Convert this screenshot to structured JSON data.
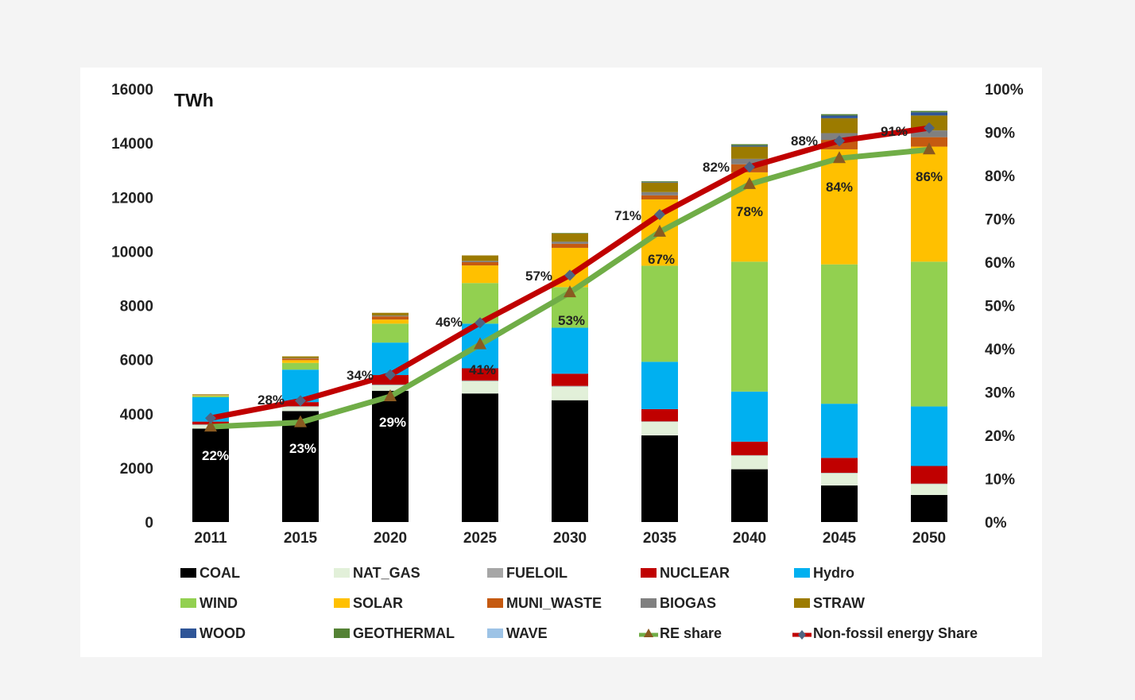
{
  "chart_data": {
    "type": "bar",
    "subtype": "stacked-bar-with-lines",
    "unit_label": "TWh",
    "categories": [
      "2011",
      "2015",
      "2020",
      "2025",
      "2030",
      "2035",
      "2040",
      "2045",
      "2050"
    ],
    "ylim": [
      0,
      16000
    ],
    "y_ticks": [
      "16000",
      "14000",
      "12000",
      "10000",
      "8000",
      "6000",
      "4000",
      "2000",
      "0"
    ],
    "y2lim": [
      0,
      100
    ],
    "y2_ticks": [
      "100%",
      "90%",
      "80%",
      "70%",
      "60%",
      "50%",
      "40%",
      "30%",
      "20%",
      "10%",
      "0%"
    ],
    "series": [
      {
        "name": "COAL",
        "color": "#000000",
        "values": [
          3450,
          4100,
          4850,
          4750,
          4500,
          3200,
          1950,
          1350,
          1000
        ]
      },
      {
        "name": "NAT_GAS",
        "color": "#e2f0d9",
        "values": [
          130,
          150,
          200,
          450,
          500,
          500,
          500,
          450,
          400
        ]
      },
      {
        "name": "FUELOIL",
        "color": "#a6a6a6",
        "values": [
          30,
          30,
          30,
          30,
          30,
          20,
          20,
          20,
          20
        ]
      },
      {
        "name": "NUCLEAR",
        "color": "#c00000",
        "values": [
          100,
          150,
          350,
          450,
          450,
          450,
          500,
          550,
          650
        ]
      },
      {
        "name": "Hydro",
        "color": "#00b0f0",
        "values": [
          900,
          1200,
          1200,
          1650,
          1700,
          1750,
          1850,
          2000,
          2200
        ]
      },
      {
        "name": "WIND",
        "color": "#92d050",
        "values": [
          50,
          250,
          700,
          1500,
          1500,
          3550,
          4800,
          5150,
          5350
        ]
      },
      {
        "name": "SOLAR",
        "color": "#ffc000",
        "values": [
          20,
          100,
          150,
          650,
          1450,
          2450,
          3300,
          4250,
          4250
        ]
      },
      {
        "name": "MUNI_WASTE",
        "color": "#c55a11",
        "values": [
          10,
          60,
          120,
          120,
          150,
          150,
          300,
          350,
          350
        ]
      },
      {
        "name": "BIOGAS",
        "color": "#808080",
        "values": [
          10,
          20,
          30,
          50,
          80,
          120,
          200,
          250,
          250
        ]
      },
      {
        "name": "STRAW",
        "color": "#9c7b00",
        "values": [
          20,
          60,
          100,
          200,
          300,
          350,
          450,
          550,
          550
        ]
      },
      {
        "name": "WOOD",
        "color": "#2f5597",
        "values": [
          0,
          0,
          0,
          0,
          0,
          20,
          40,
          100,
          120
        ]
      },
      {
        "name": "GEOTHERMAL",
        "color": "#548235",
        "values": [
          0,
          0,
          0,
          0,
          20,
          30,
          50,
          50,
          50
        ]
      },
      {
        "name": "WAVE",
        "color": "#9dc3e6",
        "values": [
          0,
          0,
          0,
          0,
          0,
          0,
          0,
          0,
          0
        ]
      }
    ],
    "lines": [
      {
        "name": "RE share",
        "color": "#70ad47",
        "marker": "triangle",
        "values": [
          22,
          23,
          29,
          41,
          53,
          67,
          78,
          84,
          86
        ],
        "labels": [
          "22%",
          "23%",
          "29%",
          "41%",
          "53%",
          "67%",
          "78%",
          "84%",
          "86%"
        ]
      },
      {
        "name": "Non-fossil energy Share",
        "color": "#c00000",
        "marker": "diamond",
        "values": [
          24,
          28,
          34,
          46,
          57,
          71,
          82,
          88,
          91
        ],
        "labels": [
          "",
          "28%",
          "34%",
          "46%",
          "57%",
          "71%",
          "82%",
          "88%",
          "91%"
        ]
      }
    ],
    "legend": [
      {
        "name": "COAL",
        "color": "#000000",
        "kind": "box"
      },
      {
        "name": "NAT_GAS",
        "color": "#e2f0d9",
        "kind": "box"
      },
      {
        "name": "FUELOIL",
        "color": "#a6a6a6",
        "kind": "box"
      },
      {
        "name": "NUCLEAR",
        "color": "#c00000",
        "kind": "box"
      },
      {
        "name": "Hydro",
        "color": "#00b0f0",
        "kind": "box"
      },
      {
        "name": "WIND",
        "color": "#92d050",
        "kind": "box"
      },
      {
        "name": "SOLAR",
        "color": "#ffc000",
        "kind": "box"
      },
      {
        "name": "MUNI_WASTE",
        "color": "#c55a11",
        "kind": "box"
      },
      {
        "name": "BIOGAS",
        "color": "#808080",
        "kind": "box"
      },
      {
        "name": "STRAW",
        "color": "#9c7b00",
        "kind": "box"
      },
      {
        "name": "WOOD",
        "color": "#2f5597",
        "kind": "box"
      },
      {
        "name": "GEOTHERMAL",
        "color": "#548235",
        "kind": "box"
      },
      {
        "name": "WAVE",
        "color": "#9dc3e6",
        "kind": "box"
      },
      {
        "name": "RE share",
        "color": "#70ad47",
        "kind": "line-triangle"
      },
      {
        "name": "Non-fossil energy Share",
        "color": "#c00000",
        "kind": "line-diamond"
      }
    ],
    "legend_position": "bottom"
  }
}
